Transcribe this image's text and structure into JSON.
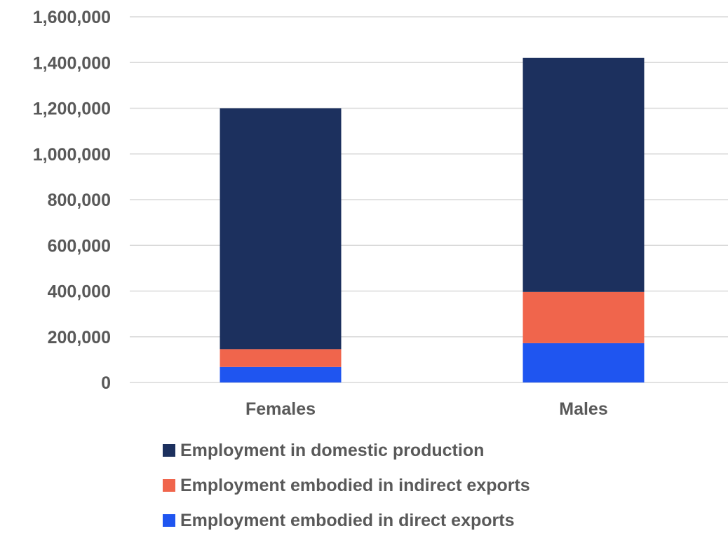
{
  "chart_data": {
    "type": "bar",
    "stacked": true,
    "categories": [
      "Females",
      "Males"
    ],
    "series": [
      {
        "name": "Employment embodied in direct exports",
        "color": "#1f55f0",
        "values": [
          68000,
          172000
        ]
      },
      {
        "name": "Employment embodied in indirect exports",
        "color": "#f0654c",
        "values": [
          78000,
          224000
        ]
      },
      {
        "name": "Employment in domestic production",
        "color": "#1c305e",
        "values": [
          1054000,
          1024000
        ]
      }
    ],
    "legend_order": [
      "Employment in domestic production",
      "Employment embodied in indirect exports",
      "Employment embodied in direct exports"
    ],
    "ylim": [
      0,
      1600000
    ],
    "yticks": [
      0,
      200000,
      400000,
      600000,
      800000,
      1000000,
      1200000,
      1400000,
      1600000
    ],
    "ytick_labels": [
      "0",
      "200,000",
      "400,000",
      "600,000",
      "800,000",
      "1,000,000",
      "1,200,000",
      "1,400,000",
      "1,600,000"
    ],
    "grid": true,
    "legend_position": "bottom",
    "title": "",
    "xlabel": "",
    "ylabel": ""
  }
}
